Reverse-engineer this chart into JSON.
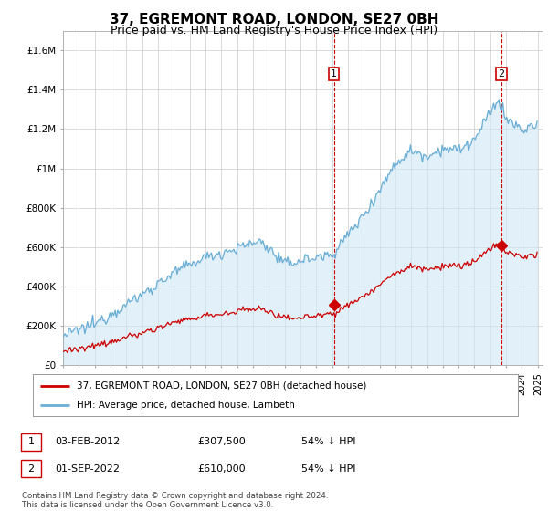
{
  "title": "37, EGREMONT ROAD, LONDON, SE27 0BH",
  "subtitle": "Price paid vs. HM Land Registry's House Price Index (HPI)",
  "ylim": [
    0,
    1700000
  ],
  "yticks": [
    0,
    200000,
    400000,
    600000,
    800000,
    1000000,
    1200000,
    1400000,
    1600000
  ],
  "ytick_labels": [
    "£0",
    "£200K",
    "£400K",
    "£600K",
    "£800K",
    "£1M",
    "£1.2M",
    "£1.4M",
    "£1.6M"
  ],
  "hpi_color": "#6aaed6",
  "hpi_fill_color": "#d0e8f5",
  "price_color": "#cc0000",
  "vline_color": "#cc0000",
  "marker1_year": 2012,
  "marker1_month": 2,
  "marker1_price": 307500,
  "marker2_year": 2022,
  "marker2_month": 9,
  "marker2_price": 610000,
  "legend_label1": "37, EGREMONT ROAD, LONDON, SE27 0BH (detached house)",
  "legend_label2": "HPI: Average price, detached house, Lambeth",
  "table_row1": [
    "1",
    "03-FEB-2012",
    "£307,500",
    "54% ↓ HPI"
  ],
  "table_row2": [
    "2",
    "01-SEP-2022",
    "£610,000",
    "54% ↓ HPI"
  ],
  "footnote": "Contains HM Land Registry data © Crown copyright and database right 2024.\nThis data is licensed under the Open Government Licence v3.0.",
  "bg_color": "#ffffff",
  "grid_color": "#cccccc",
  "title_fontsize": 11,
  "subtitle_fontsize": 9,
  "tick_fontsize": 7.5,
  "label1_box_color": "#cc0000",
  "label2_box_color": "#cc0000"
}
